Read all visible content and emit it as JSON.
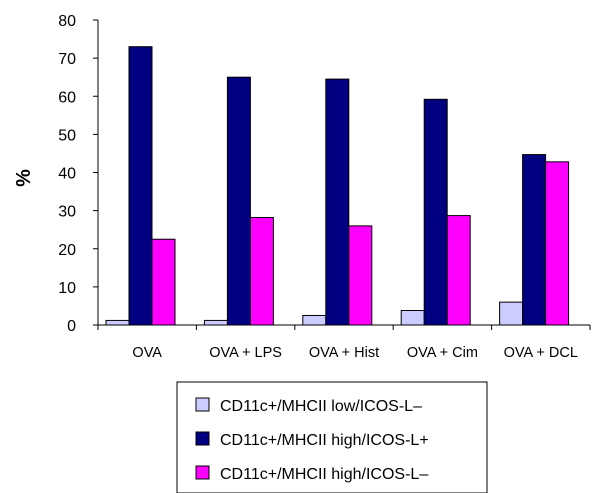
{
  "chart_data": {
    "type": "bar",
    "title": "",
    "xlabel": "",
    "ylabel": "%",
    "ylim": [
      0,
      80
    ],
    "yticks": [
      0,
      10,
      20,
      30,
      40,
      50,
      60,
      70,
      80
    ],
    "grid": false,
    "legend_position": "bottom",
    "categories": [
      "OVA",
      "OVA + LPS",
      "OVA + Hist",
      "OVA + Cim",
      "OVA + DCL"
    ],
    "series": [
      {
        "name": "CD11c+/MHCII low/ICOS-L–",
        "color": "#ccccff",
        "values": [
          1.2,
          1.2,
          2.5,
          3.8,
          6.0
        ]
      },
      {
        "name": "CD11c+/MHCII high/ICOS-L+",
        "color": "#000080",
        "values": [
          73,
          65,
          64.5,
          59.2,
          44.7
        ]
      },
      {
        "name": "CD11c+/MHCII high/ICOS-L–",
        "color": "#ff00ff",
        "values": [
          22.5,
          28.2,
          26,
          28.7,
          42.8
        ]
      }
    ]
  }
}
